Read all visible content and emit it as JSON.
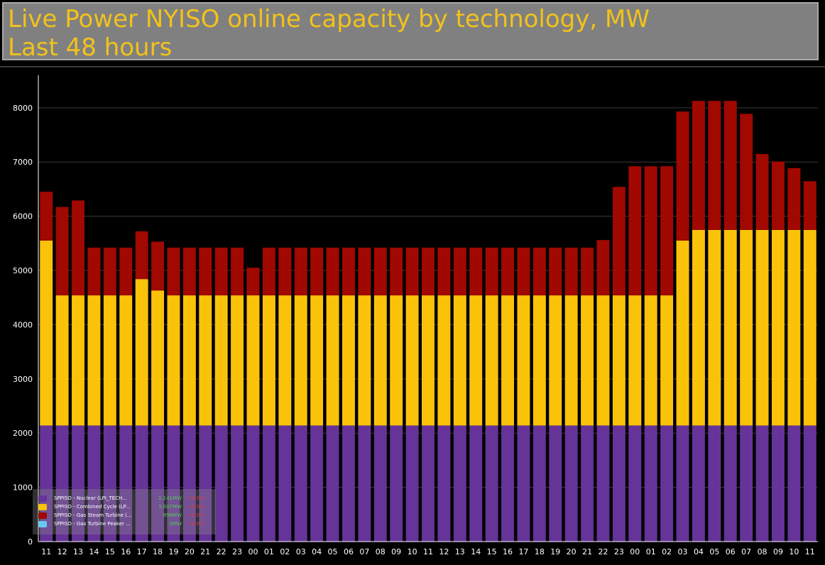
{
  "header": {
    "title_line1": "Live Power NYISO online capacity by technology, MW",
    "title_line2": "Last 48 hours",
    "background": "#808080",
    "title_color": "#f2c21b"
  },
  "chart_data": {
    "type": "bar",
    "stacked": true,
    "title": "Live Power NYISO online capacity by technology, MW",
    "subtitle": "Last 48 hours",
    "xlabel": "",
    "ylabel": "",
    "ylim": [
      0,
      8600
    ],
    "yticks": [
      0,
      1000,
      2000,
      3000,
      4000,
      5000,
      6000,
      7000,
      8000
    ],
    "grid": true,
    "legend_position": "bottom-left",
    "categories": [
      "11",
      "12",
      "13",
      "14",
      "15",
      "16",
      "17",
      "18",
      "19",
      "20",
      "21",
      "22",
      "23",
      "00",
      "01",
      "02",
      "03",
      "04",
      "05",
      "06",
      "07",
      "08",
      "09",
      "10",
      "11",
      "12",
      "13",
      "14",
      "15",
      "16",
      "17",
      "18",
      "19",
      "20",
      "21",
      "22",
      "23",
      "00",
      "01",
      "02",
      "03",
      "04",
      "05",
      "06",
      "07",
      "08",
      "09",
      "10",
      "11"
    ],
    "series": [
      {
        "name": "SPPISO - Nuclear (LPI_TECH...",
        "color": "#663399",
        "values": [
          2141,
          2141,
          2141,
          2141,
          2141,
          2141,
          2141,
          2141,
          2141,
          2141,
          2141,
          2141,
          2141,
          2141,
          2141,
          2141,
          2141,
          2141,
          2141,
          2141,
          2141,
          2141,
          2141,
          2141,
          2141,
          2141,
          2141,
          2141,
          2141,
          2141,
          2141,
          2141,
          2141,
          2141,
          2141,
          2141,
          2141,
          2141,
          2141,
          2141,
          2141,
          2141,
          2141,
          2141,
          2141,
          2141,
          2141,
          2141,
          2141
        ]
      },
      {
        "name": "SPPISO - Combined Cycle (LP...",
        "color": "#fbc20a",
        "values": [
          3410,
          2400,
          2400,
          2400,
          2400,
          2400,
          2700,
          2490,
          2400,
          2400,
          2400,
          2400,
          2400,
          2400,
          2400,
          2400,
          2400,
          2400,
          2400,
          2400,
          2400,
          2400,
          2400,
          2400,
          2400,
          2400,
          2400,
          2400,
          2400,
          2400,
          2400,
          2400,
          2400,
          2400,
          2400,
          2400,
          2400,
          2400,
          2400,
          2400,
          3410,
          3607,
          3607,
          3607,
          3607,
          3607,
          3607,
          3607,
          3607
        ]
      },
      {
        "name": "SPPISO - Gas Steam Turbine (...",
        "color": "#a00800",
        "values": [
          900,
          1630,
          1750,
          880,
          880,
          880,
          880,
          900,
          880,
          880,
          880,
          880,
          880,
          510,
          880,
          880,
          880,
          880,
          880,
          880,
          880,
          880,
          880,
          880,
          880,
          880,
          880,
          880,
          880,
          880,
          880,
          880,
          880,
          880,
          880,
          1020,
          2000,
          2380,
          2380,
          2380,
          2380,
          2380,
          2380,
          2380,
          2140,
          1400,
          1260,
          1140,
          898
        ]
      },
      {
        "name": "SPPISO - Gas Turbine Peaker ...",
        "color": "#68c8f0",
        "values": [
          0,
          0,
          0,
          0,
          0,
          0,
          0,
          0,
          0,
          0,
          0,
          0,
          0,
          0,
          0,
          0,
          0,
          0,
          0,
          0,
          0,
          0,
          0,
          0,
          0,
          0,
          0,
          0,
          0,
          0,
          0,
          0,
          0,
          0,
          0,
          0,
          0,
          0,
          0,
          0,
          0,
          0,
          0,
          0,
          0,
          0,
          0,
          0,
          0
        ]
      }
    ]
  },
  "legend": {
    "items": [
      {
        "label": "SPPISO - Nuclear (LPI_TECH...",
        "value": "2,141MW",
        "change": "+0.0%",
        "color": "#663399"
      },
      {
        "label": "SPPISO - Combined Cycle (LP...",
        "value": "3,607MW",
        "change": "+0.0%",
        "color": "#fbc20a"
      },
      {
        "label": "SPPISO - Gas Steam Turbine (...",
        "value": "898MW",
        "change": "+0.0%",
        "color": "#a00800"
      },
      {
        "label": "SPPISO - Gas Turbine Peaker ...",
        "value": "0MW",
        "change": "+0.0%",
        "color": "#68c8f0"
      }
    ]
  }
}
